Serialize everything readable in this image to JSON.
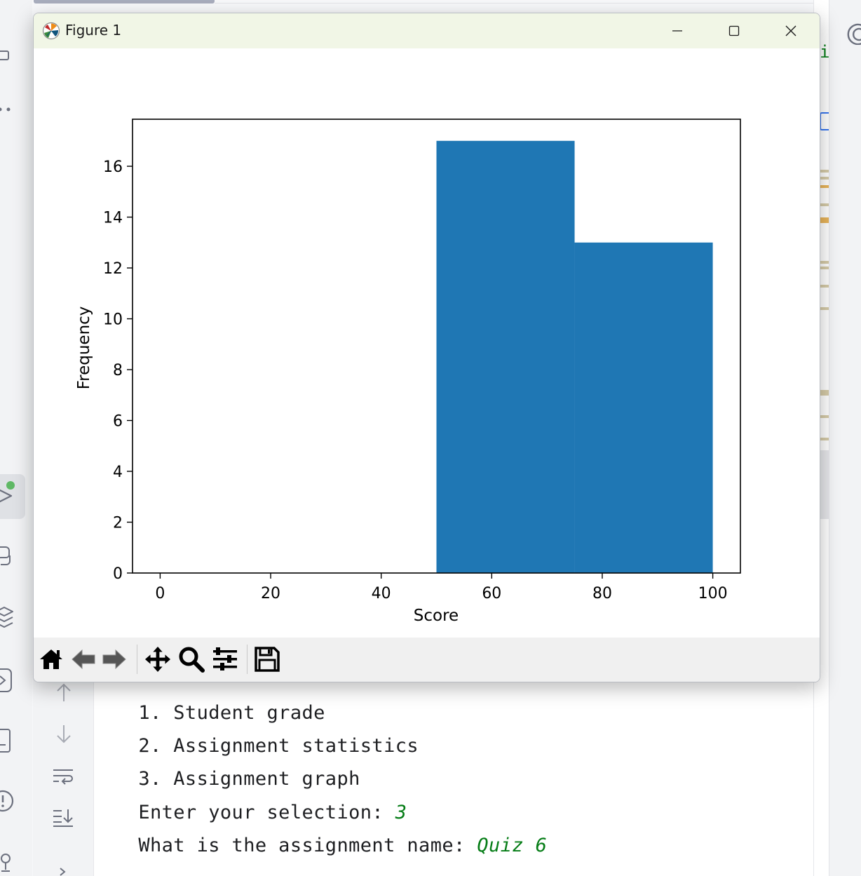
{
  "window": {
    "title": "Figure 1",
    "icons": {
      "app": "matplotlib-logo-icon",
      "minimize": "minimize-icon",
      "maximize": "maximize-icon",
      "close": "close-icon"
    }
  },
  "toolbar": {
    "tools": [
      "home-icon",
      "back-arrow-icon",
      "forward-arrow-icon",
      "pan-move-icon",
      "zoom-magnifier-icon",
      "configure-subplots-icon",
      "save-floppy-icon"
    ]
  },
  "chart_data": {
    "type": "bar",
    "title": "",
    "xlabel": "Score",
    "ylabel": "Frequency",
    "xlim": [
      -5,
      105
    ],
    "ylim": [
      0,
      17.85
    ],
    "xticks": [
      0,
      20,
      40,
      60,
      80,
      100
    ],
    "yticks": [
      0,
      2,
      4,
      6,
      8,
      10,
      12,
      14,
      16
    ],
    "bins": [
      {
        "from": 0,
        "to": 25,
        "value": 0
      },
      {
        "from": 25,
        "to": 50,
        "value": 0
      },
      {
        "from": 50,
        "to": 75,
        "value": 17
      },
      {
        "from": 75,
        "to": 100,
        "value": 13
      }
    ],
    "color": "#1f77b4",
    "grid": false,
    "legend": "none"
  },
  "console": {
    "lines": [
      {
        "text": "1. Student grade"
      },
      {
        "text": "2. Assignment statistics"
      },
      {
        "text": "3. Assignment graph"
      },
      {
        "prompt": "Enter your selection: ",
        "input": "3"
      },
      {
        "prompt": "What is the assignment name: ",
        "input": "Quiz 6"
      }
    ],
    "colors": {
      "text": "#1e1f22",
      "input": "#067d17"
    }
  },
  "ide": {
    "run_gutter_icons": [
      "arrow-up-icon",
      "arrow-down-icon",
      "soft-wrap-icon",
      "scroll-to-end-icon",
      "expand-chevron-icon"
    ],
    "left_toolbar_icons": [
      "folder-icon",
      "more-icon",
      "run-icon",
      "python-console-icon",
      "layers-icon",
      "services-icon",
      "terminal-icon",
      "problems-icon",
      "git-icon"
    ],
    "right_toolbar_icons": [
      "ai-assistant-spiral-icon"
    ]
  }
}
